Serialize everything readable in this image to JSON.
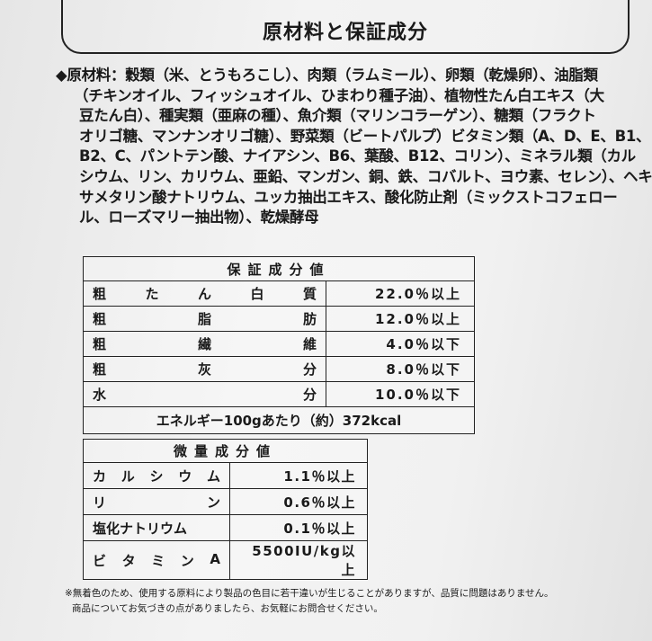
{
  "title": "原材料と保証成分",
  "ingredients_lines": [
    "◆原材料：穀類（米、とうもろこし）、肉類（ラムミール）、卵類（乾燥卵）、油脂類",
    "（チキンオイル、フィッシュオイル、ひまわり種子油）、植物性たん白エキス（大",
    "豆たん白）、種実類（亜麻の種）、魚介類（マリンコラーゲン）、糖類（フラクト",
    "オリゴ糖、マンナンオリゴ糖）、野菜類（ビートパルプ）ビタミン類（A、D、E、B1、",
    "B2、C、パントテン酸、ナイアシン、B6、葉酸、B12、コリン）、ミネラル類（カル",
    "シウム、リン、カリウム、亜鉛、マンガン、銅、鉄、コバルト、ヨウ素、セレン）、ヘキ",
    "サメタリン酸ナトリウム、ユッカ抽出エキス、酸化防止剤（ミックストコフェロー",
    "ル、ローズマリー抽出物）、乾燥酵母"
  ],
  "guaranteed": {
    "header": "保証成分値",
    "rows": [
      {
        "label": [
          "粗",
          "た",
          "ん",
          "白",
          "質"
        ],
        "value": "22.0％以上"
      },
      {
        "label": [
          "粗",
          "脂",
          "肪"
        ],
        "value": "12.0％以上"
      },
      {
        "label": [
          "粗",
          "繊",
          "維"
        ],
        "value": "4.0％以下"
      },
      {
        "label": [
          "粗",
          "灰",
          "分"
        ],
        "value": "8.0％以下"
      },
      {
        "label": [
          "水",
          "分"
        ],
        "value": "10.0％以下"
      }
    ],
    "energy": "エネルギー100gあたり（約）372kcal"
  },
  "trace": {
    "header": "微量成分値",
    "rows": [
      {
        "label": [
          "カ",
          "ル",
          "シ",
          "ウ",
          "ム"
        ],
        "value": "1.1％以上"
      },
      {
        "label": [
          "リ",
          "ン"
        ],
        "value": "0.6％以上"
      },
      {
        "label": [
          "塩化ナトリウム"
        ],
        "value": "0.1％以上"
      },
      {
        "label": [
          "ビ",
          "タ",
          "ミ",
          "ン",
          "A"
        ],
        "value": "5500IU/kg以上"
      }
    ]
  },
  "footer": [
    "※無着色のため、使用する原料により製品の色目に若干違いが生じることがありますが、品質に問題はありません。",
    "商品についてお気づきの点がありましたら、お気軽にお問合せください。"
  ]
}
